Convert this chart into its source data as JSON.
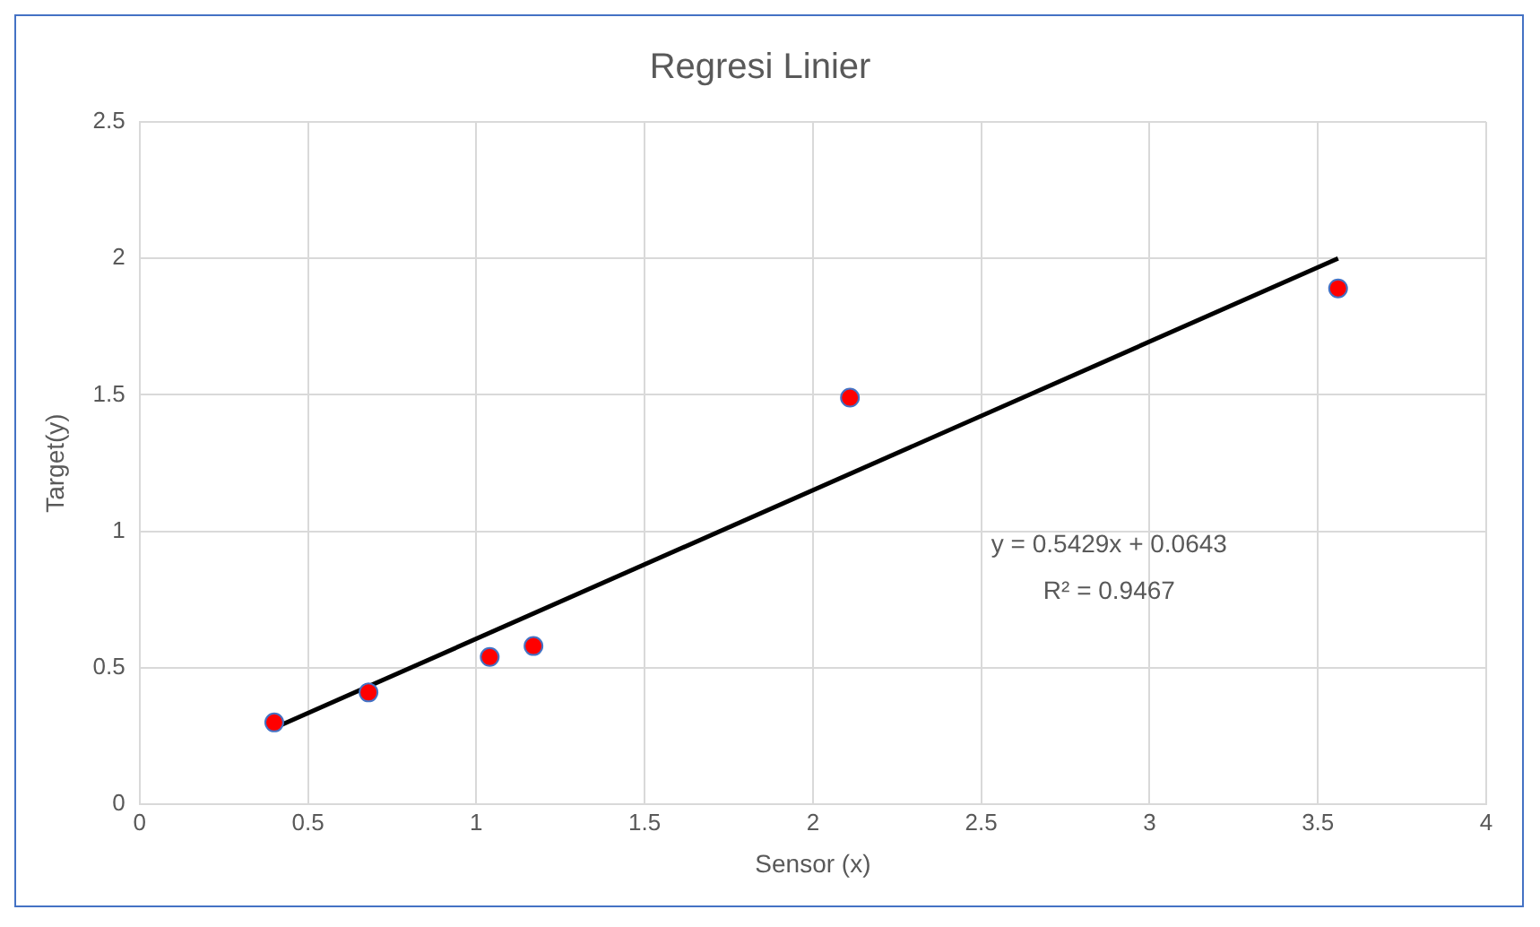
{
  "chart_data": {
    "type": "scatter",
    "title": "Regresi Linier",
    "xlabel": "Sensor (x)",
    "ylabel": "Target(y)",
    "series": [
      {
        "type": "scatter",
        "color": "#ff0000",
        "x": [
          0.4,
          0.68,
          1.04,
          1.17,
          2.11,
          3.56
        ],
        "values": [
          0.3,
          0.41,
          0.54,
          0.58,
          1.49,
          1.89
        ],
        "marker": "circle"
      },
      {
        "type": "line",
        "color": "#000000",
        "x": [
          0.4,
          3.56
        ],
        "values": [
          0.28,
          2.0
        ],
        "marker": "none",
        "line_style": "solid"
      }
    ],
    "xlim": [
      0,
      4
    ],
    "xticks": [
      0,
      0.5,
      1,
      1.5,
      2,
      2.5,
      3,
      3.5,
      4
    ],
    "ylim": [
      0,
      2.5
    ],
    "yticks": [
      0,
      0.5,
      1,
      1.5,
      2,
      2.5
    ],
    "grid": true,
    "legend": false,
    "annotations": [
      "y = 0.5429x + 0.0643",
      "R² = 0.9467"
    ]
  }
}
